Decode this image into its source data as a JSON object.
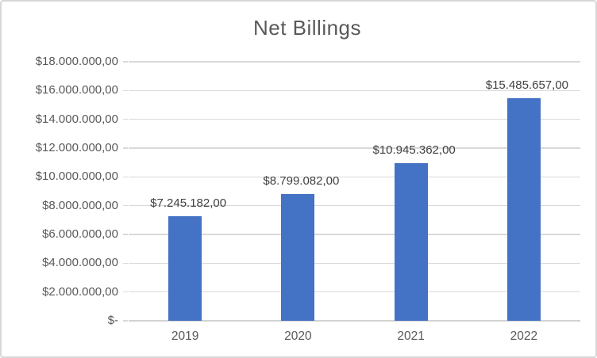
{
  "chart_data": {
    "type": "bar",
    "title": "Net Billings",
    "categories": [
      "2019",
      "2020",
      "2021",
      "2022"
    ],
    "values": [
      7245182,
      8799082,
      10945362,
      15485657
    ],
    "data_labels": [
      "$7.245.182,00",
      "$8.799.082,00",
      "$10.945.362,00",
      "$15.485.657,00"
    ],
    "xlabel": "",
    "ylabel": "",
    "ylim": [
      0,
      18000000
    ],
    "y_tick_step": 2000000,
    "y_tick_labels": [
      "$-",
      "$2.000.000,00",
      "$4.000.000,00",
      "$6.000.000,00",
      "$8.000.000,00",
      "$10.000.000,00",
      "$12.000.000,00",
      "$14.000.000,00",
      "$16.000.000,00",
      "$18.000.000,00"
    ],
    "grid": true,
    "legend": false
  },
  "colors": {
    "bar_fill": "#4472c4",
    "gridline": "#d9d9d9",
    "axis_line": "#d3d3d3",
    "title_text": "#595959",
    "axis_text": "#595959",
    "data_label_text": "#404040",
    "frame_border": "#d7d7d7",
    "background": "#ffffff"
  }
}
